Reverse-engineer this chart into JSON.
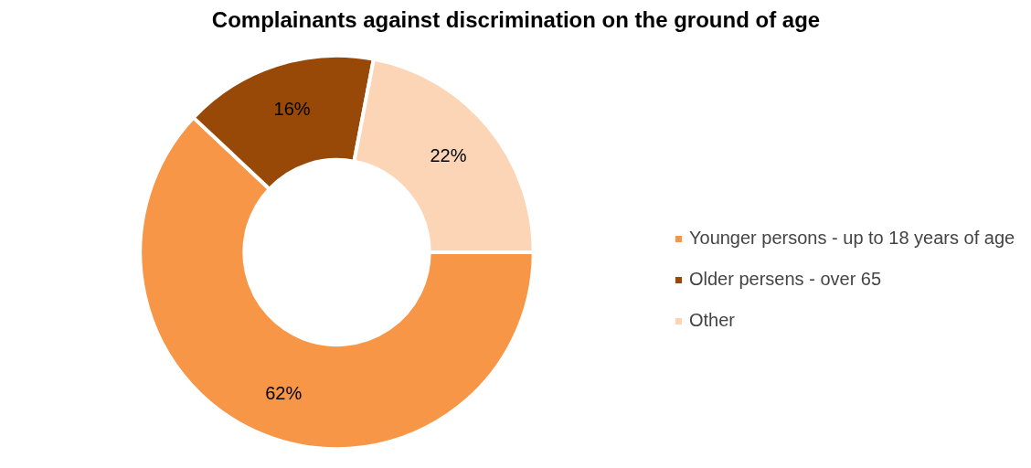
{
  "chart_data": {
    "type": "donut",
    "title": "Complainants against discrimination on the ground of age",
    "categories": [
      "Younger persons - up to 18 years of age",
      "Older persens - over 65",
      "Other"
    ],
    "values": [
      62,
      16,
      22
    ],
    "colors": [
      "#f79646",
      "#984807",
      "#fbd5b5"
    ],
    "value_labels": [
      "62%",
      "16%",
      "22%"
    ],
    "legend": "right"
  }
}
